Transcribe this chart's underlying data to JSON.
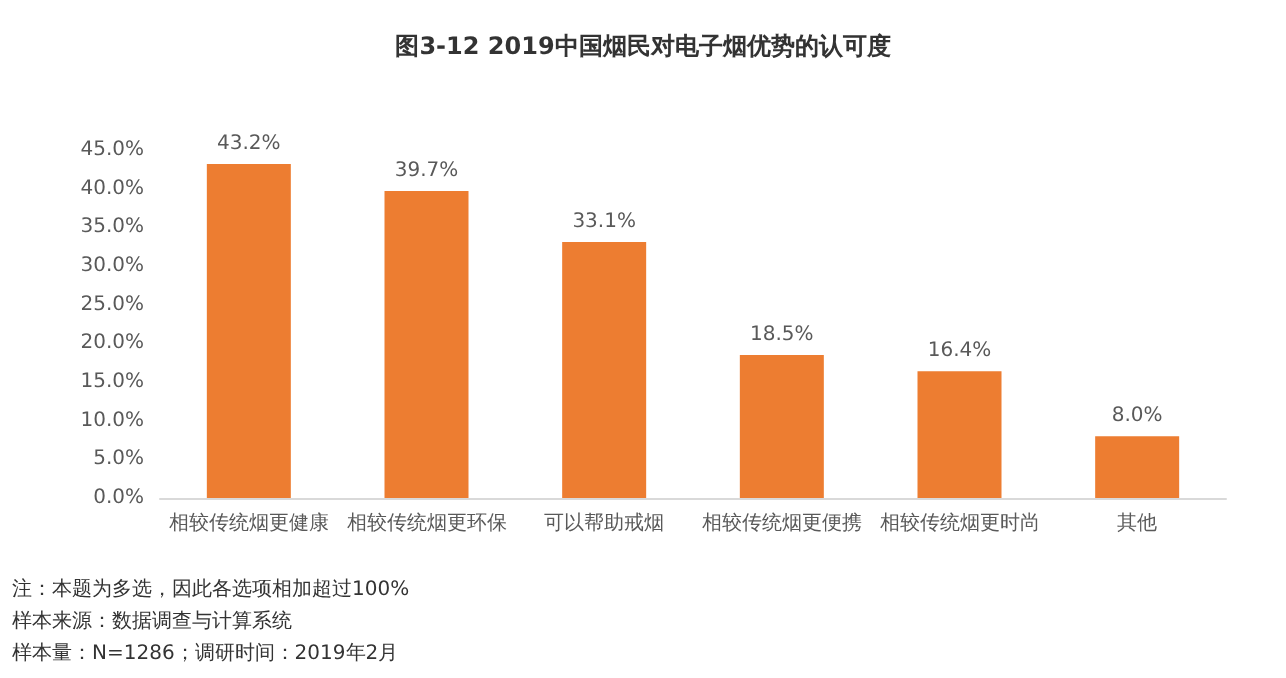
{
  "chart_data": {
    "type": "bar",
    "title": "图3-12 2019中国烟民对电子烟优势的认可度",
    "categories": [
      "相较传统烟更健康",
      "相较传统烟更环保",
      "可以帮助戒烟",
      "相较传统烟更便携",
      "相较传统烟更时尚",
      "其他"
    ],
    "values": [
      43.2,
      39.7,
      33.1,
      18.5,
      16.4,
      8.0
    ],
    "value_labels": [
      "43.2%",
      "39.7%",
      "33.1%",
      "18.5%",
      "16.4%",
      "8.0%"
    ],
    "color": "#ed7d31",
    "ylim": [
      0,
      45
    ],
    "yticks": [
      {
        "value": 0,
        "label": "0.0%"
      },
      {
        "value": 5,
        "label": "5.0%"
      },
      {
        "value": 10,
        "label": "10.0%"
      },
      {
        "value": 15,
        "label": "15.0%"
      },
      {
        "value": 20,
        "label": "20.0%"
      },
      {
        "value": 25,
        "label": "25.0%"
      },
      {
        "value": 30,
        "label": "30.0%"
      },
      {
        "value": 35,
        "label": "35.0%"
      },
      {
        "value": 40,
        "label": "40.0%"
      },
      {
        "value": 45,
        "label": "45.0%"
      }
    ],
    "grid": false,
    "annotations": [
      "注：本题为多选，因此各选项相加超过100%",
      "样本来源：数据调查与计算系统",
      "样本量：N=1286；调研时间：2019年2月"
    ]
  }
}
